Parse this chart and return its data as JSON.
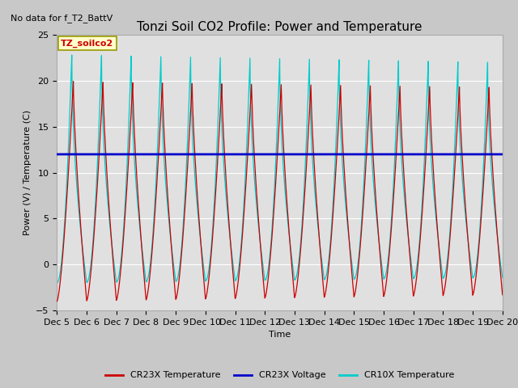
{
  "title": "Tonzi Soil CO2 Profile: Power and Temperature",
  "no_data_text": "No data for f_T2_BattV",
  "ylabel": "Power (V) / Temperature (C)",
  "xlabel": "Time",
  "ylim": [
    -5,
    25
  ],
  "yticks": [
    -5,
    0,
    5,
    10,
    15,
    20,
    25
  ],
  "xlim": [
    0,
    15
  ],
  "xtick_labels": [
    "Dec 5",
    "Dec 6",
    "Dec 7",
    "Dec 8",
    "Dec 9",
    "Dec 10",
    "Dec 11",
    "Dec 12",
    "Dec 13",
    "Dec 14",
    "Dec 15",
    "Dec 16",
    "Dec 17",
    "Dec 18",
    "Dec 19",
    "Dec 20"
  ],
  "fig_bg_color": "#c8c8c8",
  "plot_bg_color": "#e0e0e0",
  "legend_box_color": "#ffffcc",
  "legend_box_border": "#999900",
  "cr23x_temp_color": "#cc0000",
  "cr23x_volt_color": "#0000cc",
  "cr10x_temp_color": "#00cccc",
  "voltage_value": 12.0,
  "title_fontsize": 11,
  "axis_fontsize": 8,
  "tick_fontsize": 8
}
